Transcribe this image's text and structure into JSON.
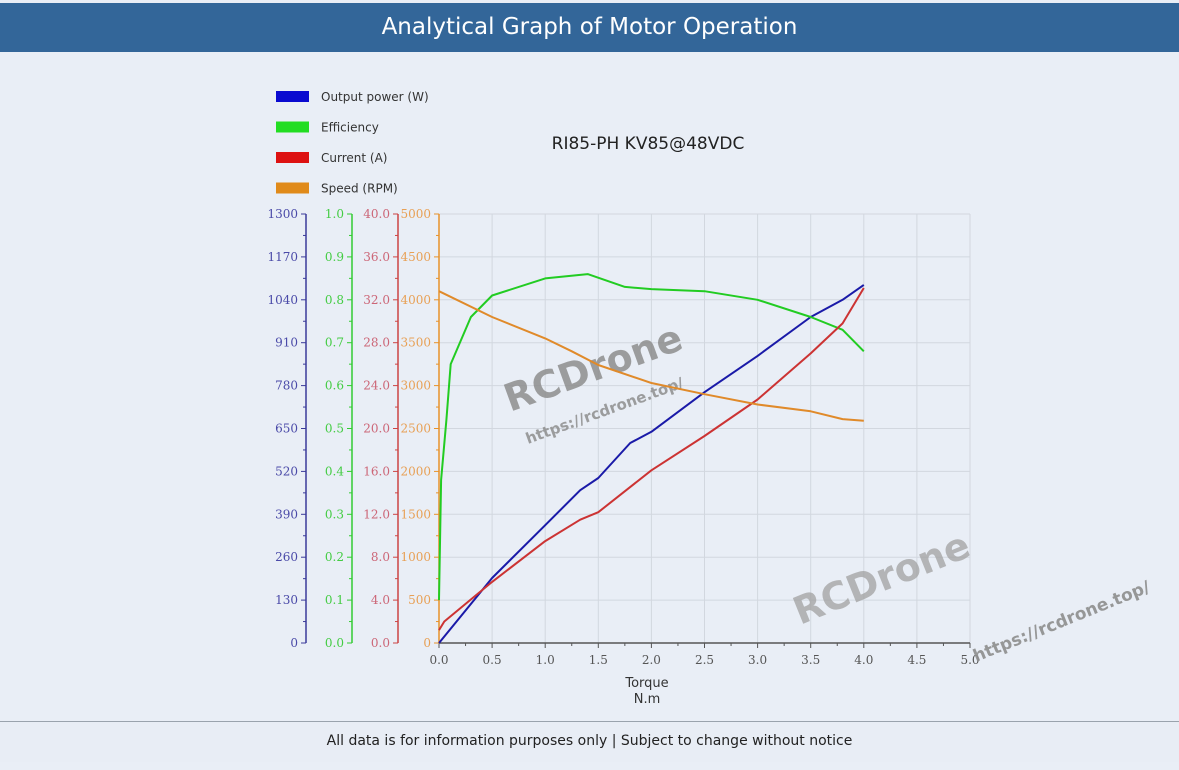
{
  "header": {
    "title": "Analytical Graph of Motor Operation"
  },
  "footer": {
    "text": "All data is for information purposes only | Subject to change without notice"
  },
  "watermark": {
    "brand": "RCDrone",
    "url": "https://rcdrone.top/"
  },
  "chart_data": {
    "type": "line",
    "title": "RI85-PH KV85@48VDC",
    "xlabel": "Torque",
    "xunit": "N.m",
    "xlim": [
      0,
      5
    ],
    "xticks": [
      "0.0",
      "0.5",
      "1.0",
      "1.5",
      "2.0",
      "2.5",
      "3.0",
      "3.5",
      "4.0",
      "4.5",
      "5.0"
    ],
    "grid": true,
    "legend_position": "top-left",
    "axes": [
      {
        "name": "Output power (W)",
        "color": "#3a3a9a",
        "range": [
          0,
          1300
        ],
        "ticks": [
          "0",
          "130",
          "260",
          "390",
          "520",
          "650",
          "780",
          "910",
          "1040",
          "1170",
          "1300"
        ]
      },
      {
        "name": "Efficiency",
        "color": "#33cc33",
        "range": [
          0,
          1.0
        ],
        "ticks": [
          "0.0",
          "0.1",
          "0.2",
          "0.3",
          "0.4",
          "0.5",
          "0.6",
          "0.7",
          "0.8",
          "0.9",
          "1.0"
        ]
      },
      {
        "name": "Current (A)",
        "color": "#cc4444",
        "range": [
          0,
          40
        ],
        "ticks": [
          "0.0",
          "4.0",
          "8.0",
          "12.0",
          "16.0",
          "20.0",
          "24.0",
          "28.0",
          "32.0",
          "36.0",
          "40.0"
        ]
      },
      {
        "name": "Speed (RPM)",
        "color": "#e8922a",
        "range": [
          0,
          5000
        ],
        "ticks": [
          "0",
          "500",
          "1000",
          "1500",
          "2000",
          "2500",
          "3000",
          "3500",
          "4000",
          "4500",
          "5000"
        ]
      }
    ],
    "series": [
      {
        "name": "Output power (W)",
        "color": "#1a1aa8",
        "axis": 0,
        "x": [
          0.0,
          0.5,
          1.0,
          1.33,
          1.5,
          1.8,
          2.0,
          2.5,
          3.0,
          3.5,
          3.8,
          4.0
        ],
        "values": [
          0,
          197,
          357,
          463,
          500,
          606,
          640,
          760,
          870,
          988,
          1040,
          1085
        ]
      },
      {
        "name": "Efficiency",
        "color": "#22cc22",
        "axis": 1,
        "x": [
          0.0,
          0.02,
          0.07,
          0.11,
          0.3,
          0.5,
          1.0,
          1.4,
          1.75,
          2.0,
          2.5,
          3.0,
          3.5,
          3.8,
          4.0
        ],
        "values": [
          0.1,
          0.38,
          0.52,
          0.65,
          0.76,
          0.81,
          0.85,
          0.86,
          0.83,
          0.825,
          0.82,
          0.8,
          0.76,
          0.73,
          0.68
        ]
      },
      {
        "name": "Current (A)",
        "color": "#cc3333",
        "axis": 2,
        "x": [
          0.0,
          0.05,
          0.5,
          1.0,
          1.33,
          1.5,
          2.0,
          2.5,
          3.0,
          3.5,
          3.8,
          4.0
        ],
        "values": [
          1.2,
          2.0,
          5.7,
          9.5,
          11.5,
          12.2,
          16.1,
          19.3,
          22.7,
          27.0,
          29.8,
          33.1
        ]
      },
      {
        "name": "Speed (RPM)",
        "color": "#e08a2a",
        "axis": 3,
        "x": [
          0.0,
          0.5,
          1.0,
          1.25,
          1.5,
          2.0,
          2.5,
          3.0,
          3.5,
          3.8,
          4.0
        ],
        "values": [
          4100,
          3800,
          3550,
          3400,
          3240,
          3030,
          2900,
          2780,
          2700,
          2610,
          2590
        ]
      }
    ]
  }
}
